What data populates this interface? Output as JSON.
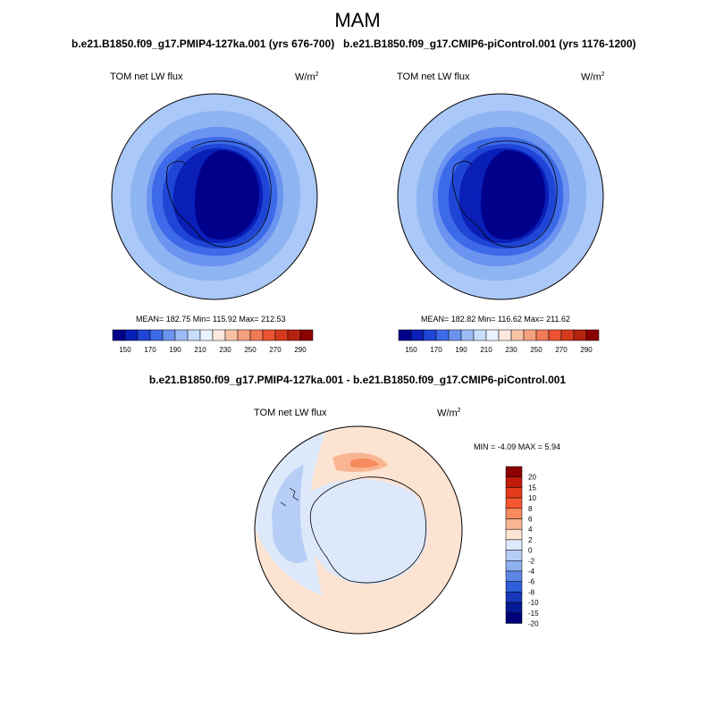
{
  "season": "MAM",
  "panels": [
    {
      "case_title": "b.e21.B1850.f09_g17.PMIP4-127ka.001 (yrs 676-700)",
      "variable": "TOM net LW flux",
      "units_base": "W/m",
      "units_exp": "2",
      "stats_text": "MEAN= 182.75  Min= 115.92  Max= 212.53"
    },
    {
      "case_title": "b.e21.B1850.f09_g17.CMIP6-piControl.001 (yrs 1176-1200)",
      "variable": "TOM net LW flux",
      "units_base": "W/m",
      "units_exp": "2",
      "stats_text": "MEAN= 182.82  Min= 116.62  Max= 211.62"
    }
  ],
  "abs_colorbar": {
    "colors": [
      "#00008b",
      "#0a1fb8",
      "#1f45d6",
      "#3d6ae8",
      "#6b93f0",
      "#9bbcf7",
      "#c8dcfb",
      "#e8f1fd",
      "#fde8df",
      "#f9c2a6",
      "#f5a07e",
      "#f17a57",
      "#eb5332",
      "#d63a1d",
      "#b52210",
      "#8b0000"
    ],
    "tick_labels": [
      "150",
      "170",
      "190",
      "210",
      "230",
      "250",
      "270",
      "290"
    ]
  },
  "diff": {
    "title": "b.e21.B1850.f09_g17.PMIP4-127ka.001 - b.e21.B1850.f09_g17.CMIP6-piControl.001",
    "variable": "TOM net LW flux",
    "units_base": "W/m",
    "units_exp": "2",
    "stats_text": "MIN =  -4.09 MAX =   5.94",
    "colorbar_colors": [
      "#8b0000",
      "#c21b0c",
      "#e53b1c",
      "#f5572f",
      "#f78a5e",
      "#f9b592",
      "#fde3d2",
      "#dde9fb",
      "#b6cdf6",
      "#8fb0f0",
      "#5b86e6",
      "#2f5fd8",
      "#1638b8",
      "#061a95",
      "#00007a"
    ],
    "tick_labels": [
      "20",
      "15",
      "10",
      "8",
      "6",
      "4",
      "2",
      "0",
      "-2",
      "-4",
      "-6",
      "-8",
      "-10",
      "-15",
      "-20"
    ]
  }
}
